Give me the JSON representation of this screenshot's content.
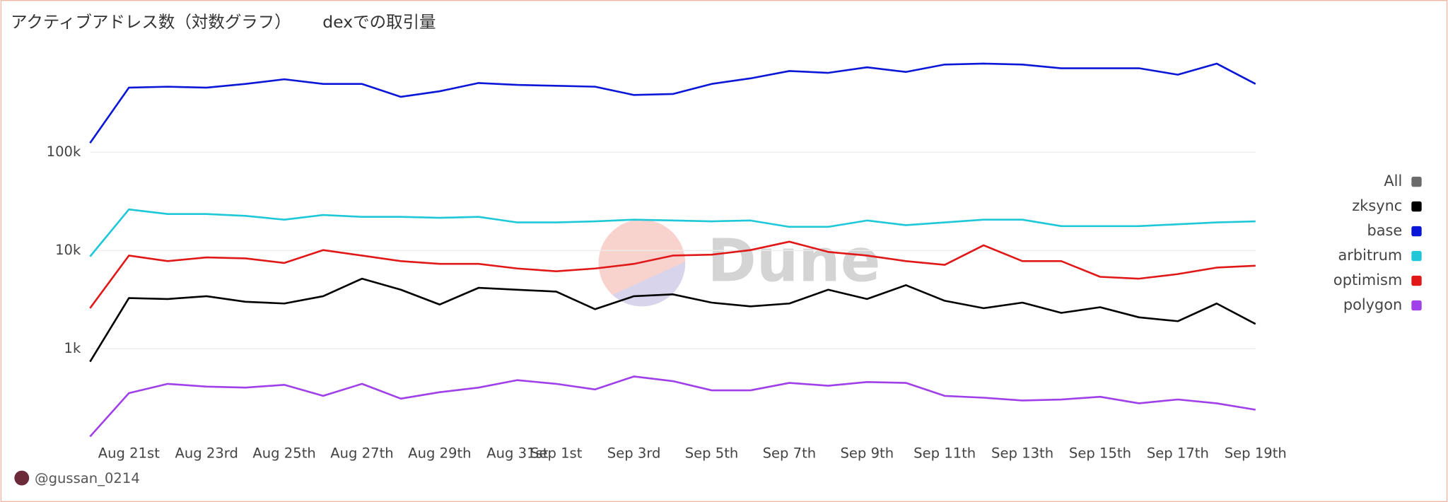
{
  "chart_data": {
    "type": "line",
    "title": "アクティブアドレス数（対数グラフ）",
    "subtitle": "dexでの取引量",
    "watermark": "Dune",
    "author": "@gussan_0214",
    "log_scale": true,
    "grid": true,
    "legend": "right",
    "categories": [
      null,
      "Aug 21st",
      null,
      "Aug 23rd",
      null,
      "Aug 25th",
      null,
      "Aug 27th",
      null,
      "Aug 29th",
      null,
      "Aug 31st",
      "Sep 1st",
      null,
      "Sep 3rd",
      null,
      "Sep 5th",
      null,
      "Sep 7th",
      null,
      "Sep 9th",
      null,
      "Sep 11th",
      null,
      "Sep 13th",
      null,
      "Sep 15th",
      null,
      "Sep 17th",
      null,
      "Sep 19th"
    ],
    "ylim": [
      100,
      1200000
    ],
    "yticks": [
      {
        "value": 1000,
        "label": "1k"
      },
      {
        "value": 10000,
        "label": "10k"
      },
      {
        "value": 100000,
        "label": "100k"
      }
    ],
    "series": [
      {
        "name": "All",
        "color": "#6b6b6b",
        "values": [
          null,
          null,
          null,
          null,
          null,
          null,
          null,
          null,
          null,
          null,
          null,
          null,
          null,
          null,
          null,
          null,
          null,
          null,
          null,
          null,
          null,
          null,
          null,
          null,
          null,
          null,
          null,
          null,
          null,
          null,
          null
        ]
      },
      {
        "name": "zksync",
        "color": "#000000",
        "values": [
          739,
          3280,
          3210,
          3430,
          3010,
          2890,
          3430,
          5170,
          3990,
          2820,
          4170,
          3990,
          3820,
          2530,
          3430,
          3580,
          2950,
          2700,
          2890,
          3990,
          3210,
          4440,
          3080,
          2590,
          2950,
          2320,
          2650,
          2090,
          1910,
          2890,
          1790
        ]
      },
      {
        "name": "base",
        "color": "#0a17d6",
        "values": [
          124000,
          454000,
          464000,
          454000,
          495000,
          552000,
          495000,
          495000,
          366000,
          417000,
          506000,
          484000,
          474000,
          464000,
          382000,
          391000,
          495000,
          564000,
          670000,
          642000,
          731000,
          656000,
          780000,
          797000,
          780000,
          715000,
          715000,
          715000,
          615000,
          797000,
          495000
        ]
      },
      {
        "name": "arbitrum",
        "color": "#1ec8d8",
        "values": [
          8690,
          26200,
          23500,
          23500,
          22500,
          20600,
          23000,
          22000,
          22000,
          21500,
          22000,
          19300,
          19300,
          19800,
          20600,
          20200,
          19800,
          20200,
          17400,
          17400,
          20200,
          18100,
          19300,
          20600,
          20600,
          17700,
          17700,
          17700,
          18500,
          19300,
          19800
        ]
      },
      {
        "name": "optimism",
        "color": "#e01818",
        "values": [
          2590,
          8880,
          7800,
          8510,
          8320,
          7470,
          10100,
          8880,
          7800,
          7310,
          7310,
          6560,
          6150,
          6560,
          7310,
          8880,
          9070,
          10100,
          12300,
          9680,
          8880,
          7800,
          7150,
          11300,
          7800,
          7800,
          5400,
          5170,
          5760,
          6700,
          7000
        ]
      },
      {
        "name": "polygon",
        "color": "#a040e8",
        "values": [
          128,
          354,
          440,
          412,
          403,
          430,
          332,
          440,
          311,
          362,
          403,
          480,
          440,
          386,
          523,
          469,
          378,
          378,
          450,
          421,
          459,
          450,
          332,
          318,
          298,
          305,
          325,
          279,
          305,
          279,
          240
        ]
      }
    ]
  }
}
